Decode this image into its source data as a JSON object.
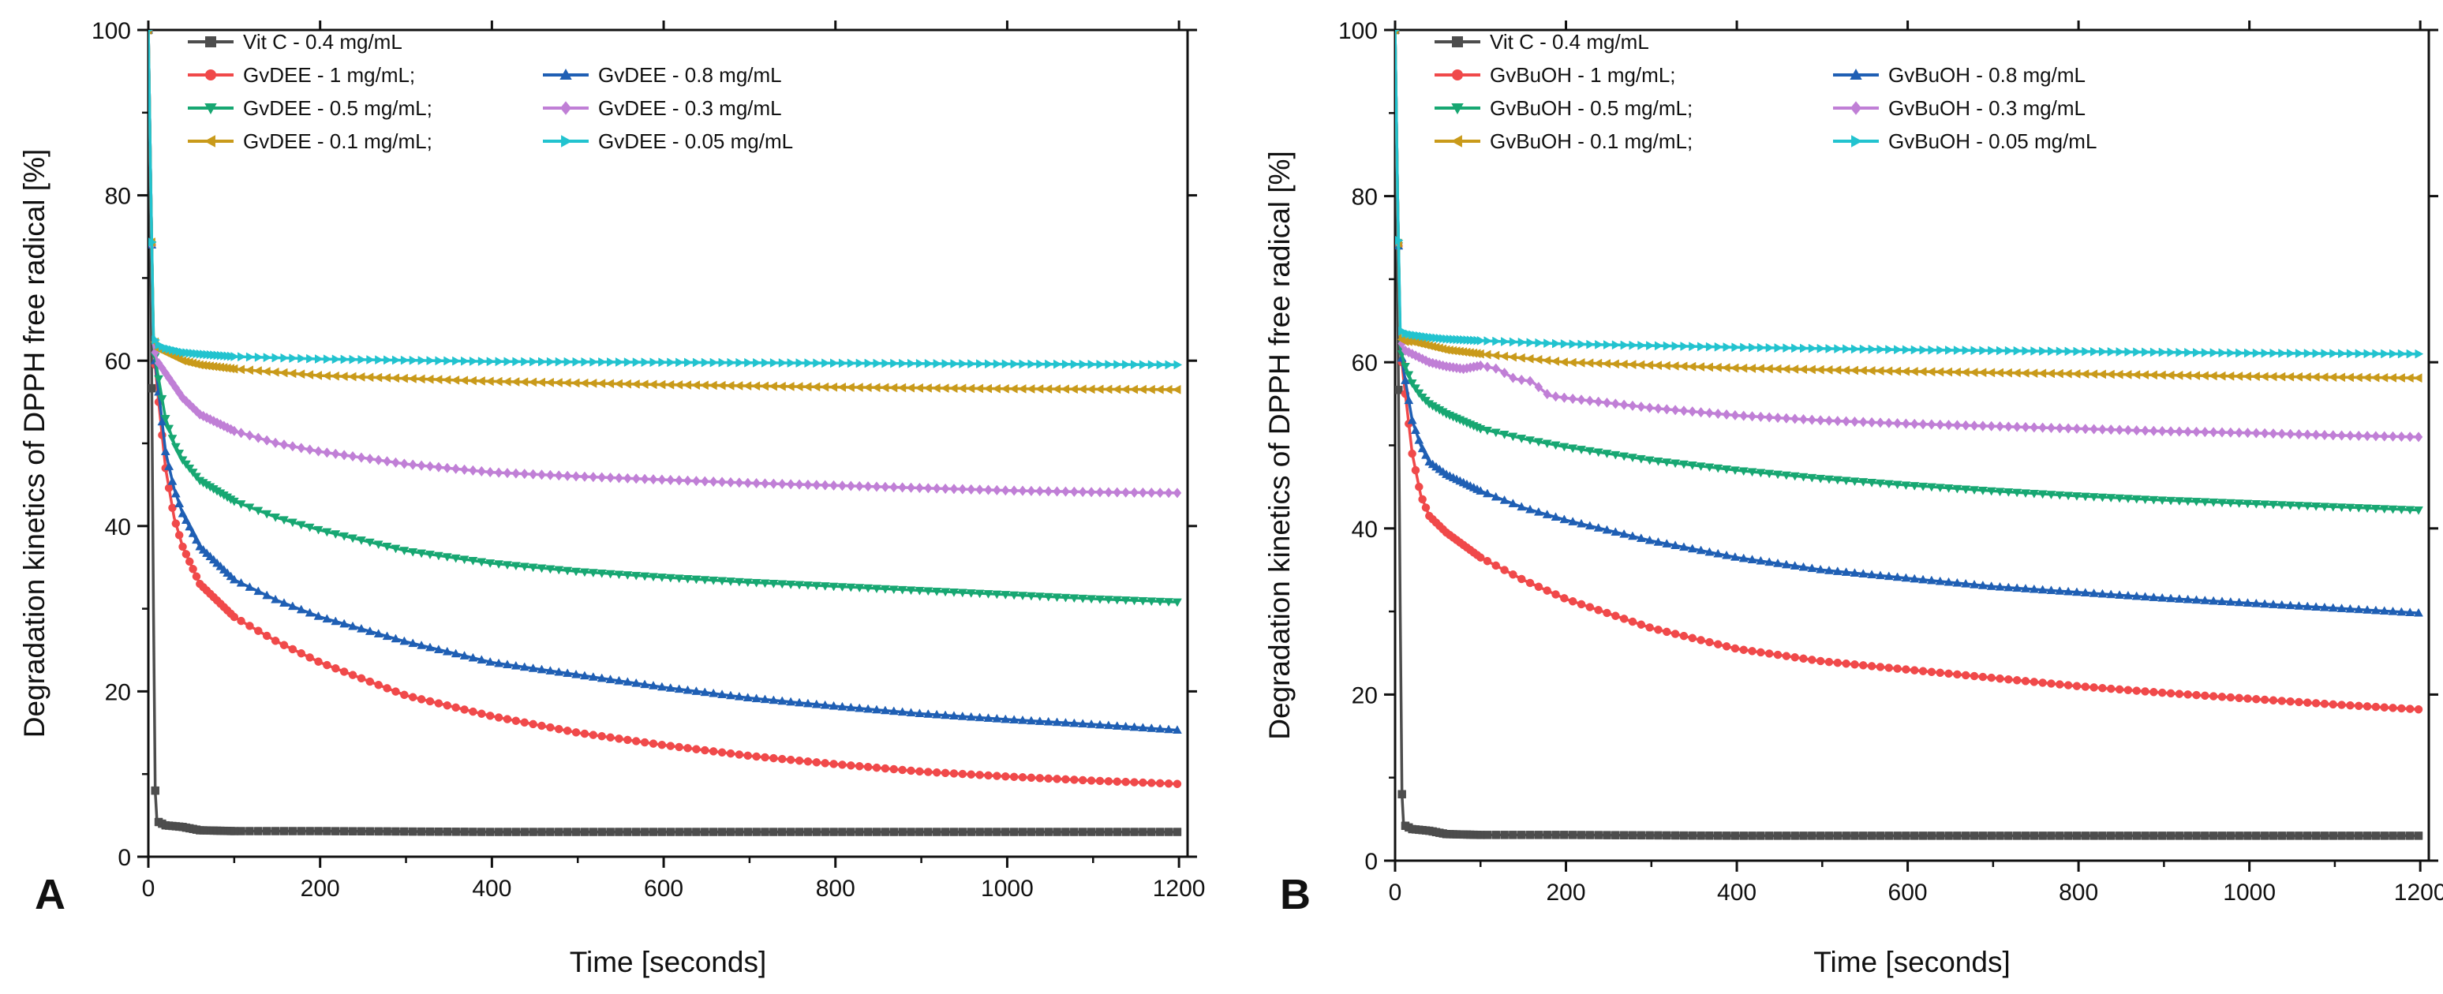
{
  "figure": {
    "panel_letters": [
      "A",
      "B"
    ]
  },
  "chart_data": [
    {
      "type": "line",
      "panel": "A",
      "title": "",
      "xlabel": "Time [seconds]",
      "ylabel": "Degradation kinetics of DPPH free radical [%]",
      "xlim": [
        0,
        1210
      ],
      "ylim": [
        0,
        100
      ],
      "x_ticks": [
        0,
        200,
        400,
        600,
        800,
        1000,
        1200
      ],
      "y_ticks": [
        0,
        20,
        40,
        60,
        80,
        100
      ],
      "legend_position": "top-left",
      "grid": false,
      "series": [
        {
          "name": "Vit C - 0.4 mg/mL",
          "legend_label": "Vit C - 0.4 mg/mL",
          "color": "#4d4d4d",
          "marker": "square",
          "x": [
            0,
            3,
            6,
            8,
            10,
            20,
            40,
            60,
            100,
            200,
            400,
            600,
            800,
            1000,
            1200
          ],
          "y": [
            100,
            70,
            30,
            8,
            4.3,
            3.8,
            3.6,
            3.2,
            3.1,
            3.1,
            3.0,
            3.0,
            3.0,
            3.0,
            3.0
          ]
        },
        {
          "name": "GvDEE - 1 mg/mL",
          "legend_label": "GvDEE - 1 mg/mL;",
          "color": "#f0494a",
          "marker": "circle",
          "x": [
            0,
            3,
            6,
            10,
            20,
            30,
            40,
            60,
            100,
            150,
            200,
            300,
            400,
            500,
            600,
            700,
            800,
            900,
            1000,
            1100,
            1200
          ],
          "y": [
            100,
            80,
            62,
            57,
            47,
            41,
            37.5,
            33,
            29,
            26,
            23.5,
            19.5,
            17,
            15,
            13.5,
            12.2,
            11.2,
            10.3,
            9.7,
            9.2,
            8.8
          ]
        },
        {
          "name": "GvDEE - 0.8 mg/mL",
          "legend_label": "GvDEE - 0.8 mg/mL",
          "color": "#1f5fb4",
          "marker": "triangle",
          "x": [
            0,
            3,
            6,
            10,
            20,
            30,
            40,
            60,
            100,
            150,
            200,
            300,
            400,
            500,
            600,
            700,
            800,
            900,
            1000,
            1100,
            1200
          ],
          "y": [
            100,
            80,
            62,
            58,
            49,
            44.5,
            41.5,
            37.5,
            33.5,
            31,
            29,
            26,
            23.5,
            22,
            20.5,
            19.2,
            18.2,
            17.3,
            16.6,
            16,
            15.3
          ]
        },
        {
          "name": "GvDEE - 0.5 mg/mL",
          "legend_label": "GvDEE - 0.5 mg/mL;",
          "color": "#17a772",
          "marker": "triangle-down",
          "x": [
            0,
            3,
            6,
            10,
            20,
            30,
            40,
            60,
            100,
            150,
            200,
            300,
            400,
            500,
            600,
            700,
            800,
            900,
            1000,
            1100,
            1200
          ],
          "y": [
            100,
            80,
            62,
            59,
            53,
            50,
            48,
            45.5,
            43,
            41,
            39.5,
            37,
            35.5,
            34.5,
            33.8,
            33.2,
            32.7,
            32.2,
            31.7,
            31.2,
            30.8
          ]
        },
        {
          "name": "GvDEE - 0.3 mg/mL",
          "legend_label": "GvDEE - 0.3 mg/mL",
          "color": "#c07fd6",
          "marker": "diamond",
          "x": [
            0,
            3,
            6,
            10,
            20,
            30,
            40,
            60,
            100,
            150,
            200,
            300,
            400,
            500,
            600,
            700,
            800,
            900,
            1000,
            1100,
            1200
          ],
          "y": [
            100,
            80,
            62,
            60,
            58.5,
            57,
            55.5,
            53.5,
            51.5,
            50,
            49,
            47.5,
            46.5,
            46,
            45.6,
            45.2,
            44.9,
            44.6,
            44.3,
            44.1,
            44.0
          ]
        },
        {
          "name": "GvDEE - 0.1 mg/mL",
          "legend_label": "GvDEE - 0.1 mg/mL;",
          "color": "#c99a1a",
          "marker": "triangle-left",
          "x": [
            0,
            3,
            6,
            10,
            20,
            40,
            60,
            100,
            200,
            400,
            600,
            800,
            1000,
            1200
          ],
          "y": [
            100,
            80,
            63,
            61.5,
            61,
            60,
            59.5,
            59,
            58.2,
            57.5,
            57.1,
            56.8,
            56.6,
            56.5
          ]
        },
        {
          "name": "GvDEE - 0.05 mg/mL",
          "legend_label": "GvDEE - 0.05 mg/mL",
          "color": "#22c3cf",
          "marker": "triangle-right",
          "x": [
            0,
            3,
            6,
            10,
            20,
            40,
            60,
            100,
            200,
            400,
            600,
            800,
            1000,
            1200
          ],
          "y": [
            100,
            80,
            63,
            62,
            61.5,
            61,
            60.8,
            60.5,
            60.2,
            59.9,
            59.8,
            59.7,
            59.6,
            59.5
          ]
        }
      ]
    },
    {
      "type": "line",
      "panel": "B",
      "title": "",
      "xlabel": "Time [seconds]",
      "ylabel": "Degradation kinetics of DPPH free radical [%]",
      "xlim": [
        0,
        1210
      ],
      "ylim": [
        0,
        100
      ],
      "x_ticks": [
        0,
        200,
        400,
        600,
        800,
        1000,
        1200
      ],
      "y_ticks": [
        0,
        20,
        40,
        60,
        80,
        100
      ],
      "legend_position": "top-left",
      "grid": false,
      "series": [
        {
          "name": "Vit C - 0.4 mg/mL",
          "legend_label": "Vit C - 0.4 mg/mL",
          "color": "#4d4d4d",
          "marker": "square",
          "x": [
            0,
            3,
            6,
            8,
            10,
            20,
            40,
            60,
            100,
            200,
            400,
            600,
            800,
            1000,
            1200
          ],
          "y": [
            100,
            70,
            30,
            8,
            4.3,
            3.8,
            3.6,
            3.2,
            3.1,
            3.1,
            3.0,
            3.0,
            3.0,
            3.0,
            3.0
          ]
        },
        {
          "name": "GvBuOH - 1 mg/mL",
          "legend_label": "GvBuOH - 1 mg/mL;",
          "color": "#f0494a",
          "marker": "circle",
          "x": [
            0,
            3,
            6,
            10,
            20,
            30,
            40,
            60,
            100,
            150,
            200,
            300,
            400,
            500,
            600,
            700,
            800,
            900,
            1000,
            1100,
            1200
          ],
          "y": [
            100,
            80,
            62,
            58,
            49,
            44,
            41.5,
            39.5,
            36.5,
            33.8,
            31.5,
            28,
            25.5,
            24,
            23,
            22,
            21,
            20.2,
            19.5,
            18.8,
            18.2
          ]
        },
        {
          "name": "GvBuOH - 0.8 mg/mL",
          "legend_label": "GvBuOH - 0.8 mg/mL",
          "color": "#1f5fb4",
          "marker": "triangle",
          "x": [
            0,
            3,
            6,
            10,
            20,
            30,
            40,
            60,
            100,
            150,
            200,
            300,
            400,
            500,
            600,
            700,
            800,
            900,
            1000,
            1100,
            1200
          ],
          "y": [
            100,
            80,
            62,
            59,
            53,
            50,
            48,
            46.5,
            44.5,
            42.5,
            41,
            38.5,
            36.5,
            35,
            34,
            33,
            32.3,
            31.6,
            31,
            30.4,
            29.8
          ]
        },
        {
          "name": "GvBuOH - 0.5 mg/mL",
          "legend_label": "GvBuOH - 0.5 mg/mL;",
          "color": "#17a772",
          "marker": "triangle-down",
          "x": [
            0,
            3,
            6,
            10,
            20,
            30,
            40,
            60,
            100,
            150,
            200,
            300,
            400,
            500,
            600,
            700,
            800,
            900,
            1000,
            1100,
            1200
          ],
          "y": [
            100,
            80,
            62,
            60,
            57.5,
            56,
            55,
            53.8,
            52,
            50.8,
            49.8,
            48.2,
            47,
            46,
            45.2,
            44.5,
            43.9,
            43.4,
            43,
            42.6,
            42.2
          ]
        },
        {
          "name": "GvBuOH - 0.3 mg/mL",
          "legend_label": "GvBuOH - 0.3 mg/mL",
          "color": "#c07fd6",
          "marker": "diamond",
          "x": [
            0,
            3,
            6,
            10,
            20,
            30,
            40,
            60,
            80,
            100,
            120,
            140,
            160,
            180,
            200,
            300,
            400,
            500,
            600,
            700,
            800,
            900,
            1000,
            1100,
            1200
          ],
          "y": [
            100,
            80,
            63,
            61.5,
            61,
            60.5,
            60,
            59.5,
            59.2,
            59.6,
            59.2,
            58,
            57.7,
            56,
            55.7,
            54.5,
            53.6,
            53,
            52.6,
            52.3,
            52,
            51.7,
            51.5,
            51.2,
            51.0
          ]
        },
        {
          "name": "GvBuOH - 0.1 mg/mL",
          "legend_label": "GvBuOH - 0.1 mg/mL;",
          "color": "#c99a1a",
          "marker": "triangle-left",
          "x": [
            0,
            3,
            6,
            10,
            20,
            40,
            60,
            100,
            200,
            400,
            600,
            800,
            1000,
            1200
          ],
          "y": [
            100,
            80,
            63,
            62.5,
            62.5,
            62,
            61.5,
            61,
            60,
            59.3,
            58.9,
            58.6,
            58.3,
            58.1
          ]
        },
        {
          "name": "GvBuOH - 0.05 mg/mL",
          "legend_label": "GvBuOH - 0.05 mg/mL",
          "color": "#22c3cf",
          "marker": "triangle-right",
          "x": [
            0,
            3,
            6,
            10,
            20,
            40,
            60,
            100,
            200,
            400,
            600,
            800,
            1000,
            1200
          ],
          "y": [
            100,
            80,
            64,
            63.5,
            63.3,
            63,
            62.8,
            62.6,
            62.2,
            61.8,
            61.5,
            61.3,
            61.1,
            61.0
          ]
        }
      ]
    }
  ]
}
